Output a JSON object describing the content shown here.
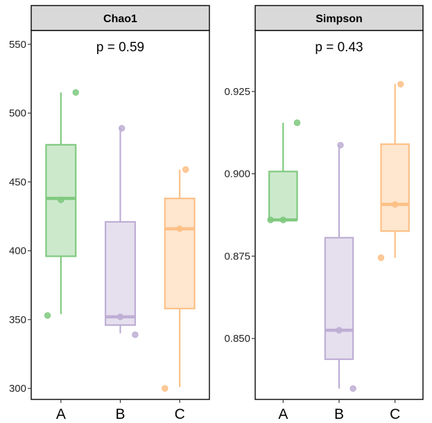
{
  "chart_data": [
    {
      "type": "box",
      "title": "Chao1",
      "annotation": "p = 0.59",
      "categories": [
        "A",
        "B",
        "C"
      ],
      "colors": [
        "#7fc97f",
        "#beaed4",
        "#fdc086"
      ],
      "ylim": [
        292,
        560
      ],
      "yticks": [
        300,
        350,
        400,
        450,
        500,
        550
      ],
      "ytick_labels": [
        "300",
        "350",
        "400",
        "450",
        "500",
        "550"
      ],
      "boxes": [
        {
          "group": "A",
          "min": 354,
          "q1": 396,
          "median": 438,
          "q3": 477,
          "max": 515
        },
        {
          "group": "B",
          "min": 340,
          "q1": 346,
          "median": 352,
          "q3": 421,
          "max": 489
        },
        {
          "group": "C",
          "min": 301,
          "q1": 358,
          "median": 416,
          "q3": 438,
          "max": 459
        }
      ],
      "points": [
        {
          "group": "A",
          "values": [
            515,
            437,
            353
          ]
        },
        {
          "group": "B",
          "values": [
            489,
            352,
            339
          ]
        },
        {
          "group": "C",
          "values": [
            459,
            416,
            300
          ]
        }
      ]
    },
    {
      "type": "box",
      "title": "Simpson",
      "annotation": "p = 0.43",
      "categories": [
        "A",
        "B",
        "C"
      ],
      "colors": [
        "#7fc97f",
        "#beaed4",
        "#fdc086"
      ],
      "ylim": [
        0.8315,
        0.9435
      ],
      "yticks": [
        0.85,
        0.875,
        0.9,
        0.925
      ],
      "ytick_labels": [
        "0.850",
        "0.875",
        "0.900",
        "0.925"
      ],
      "boxes": [
        {
          "group": "A",
          "min": 0.886,
          "q1": 0.886,
          "median": 0.886,
          "q3": 0.9007,
          "max": 0.9155
        },
        {
          "group": "B",
          "min": 0.8348,
          "q1": 0.8437,
          "median": 0.8525,
          "q3": 0.8806,
          "max": 0.9087
        },
        {
          "group": "C",
          "min": 0.8745,
          "q1": 0.8826,
          "median": 0.8907,
          "q3": 0.909,
          "max": 0.9273
        }
      ],
      "points": [
        {
          "group": "A",
          "values": [
            0.9155,
            0.886,
            0.886
          ]
        },
        {
          "group": "B",
          "values": [
            0.9087,
            0.8525,
            0.8348
          ]
        },
        {
          "group": "C",
          "values": [
            0.9272,
            0.8907,
            0.8745
          ]
        }
      ]
    }
  ]
}
